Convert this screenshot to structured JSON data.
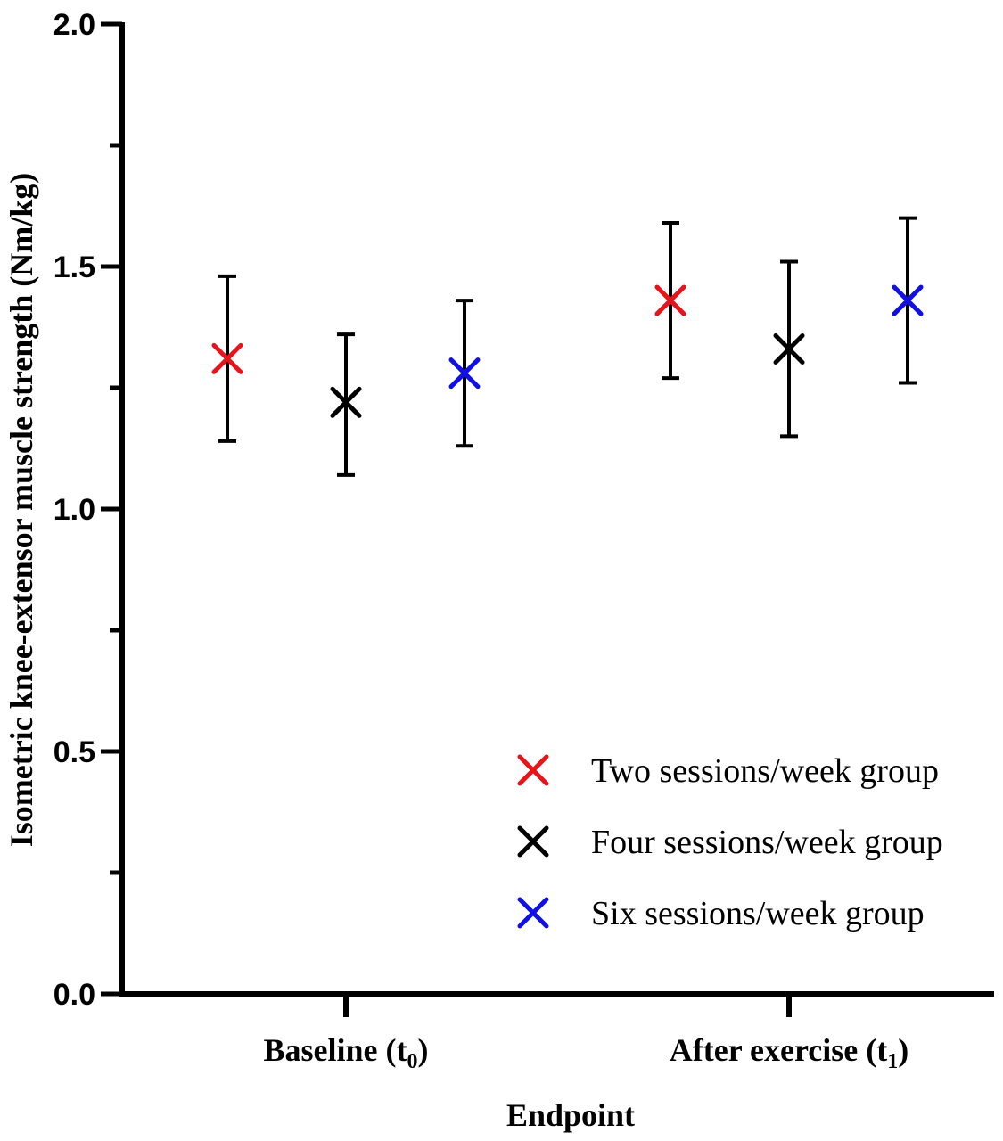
{
  "chart_data": {
    "type": "scatter",
    "title": "",
    "xlabel": "Endpoint",
    "ylabel": "Isometric knee-extensor muscle strength (Nm/kg)",
    "ylim": [
      0,
      2.0
    ],
    "yticks_major": [
      {
        "value": 0.0,
        "label": "0.0"
      },
      {
        "value": 0.5,
        "label": "0.5"
      },
      {
        "value": 1.0,
        "label": "1.0"
      },
      {
        "value": 1.5,
        "label": "1.5"
      },
      {
        "value": 2.0,
        "label": "2.0"
      }
    ],
    "yticks_minor": [
      0.25,
      0.75,
      1.25,
      1.75
    ],
    "categories": [
      {
        "label": "Baseline (t",
        "sub": "0",
        "close": ")"
      },
      {
        "label": "After exercise (t",
        "sub": "1",
        "close": ")"
      }
    ],
    "series": [
      {
        "name": "Two sessions/week group",
        "color": "#e8141b",
        "marker": "x",
        "values": [
          1.31,
          1.43
        ],
        "error_low": [
          1.14,
          1.27
        ],
        "error_high": [
          1.48,
          1.59
        ]
      },
      {
        "name": "Four sessions/week group",
        "color": "#000000",
        "marker": "x",
        "values": [
          1.22,
          1.33
        ],
        "error_low": [
          1.07,
          1.15
        ],
        "error_high": [
          1.36,
          1.51
        ]
      },
      {
        "name": "Six sessions/week group",
        "color": "#1010e6",
        "marker": "x",
        "values": [
          1.28,
          1.43
        ],
        "error_low": [
          1.13,
          1.26
        ],
        "error_high": [
          1.43,
          1.6
        ]
      }
    ],
    "grid": false,
    "legend_position": "bottom-right"
  }
}
